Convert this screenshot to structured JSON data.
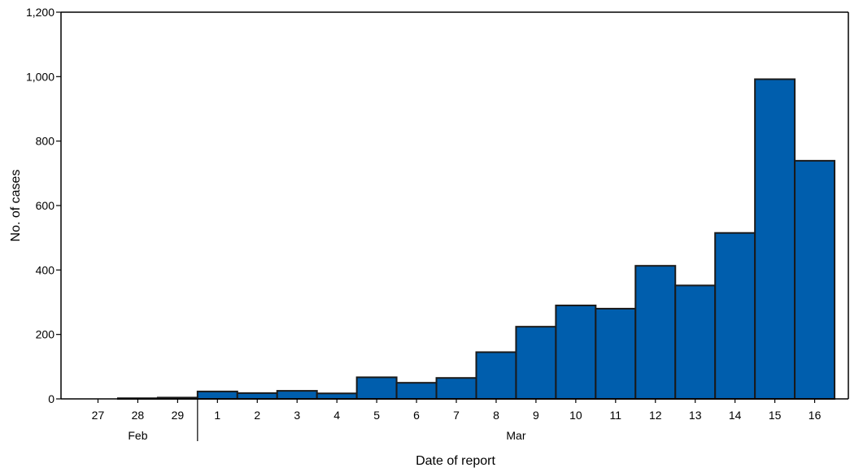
{
  "chart_data": {
    "type": "bar",
    "categories": [
      "27",
      "28",
      "29",
      "1",
      "2",
      "3",
      "4",
      "5",
      "6",
      "7",
      "8",
      "9",
      "10",
      "11",
      "12",
      "13",
      "14",
      "15",
      "16"
    ],
    "values": [
      0,
      2,
      4,
      23,
      18,
      25,
      17,
      67,
      50,
      65,
      145,
      224,
      290,
      280,
      413,
      352,
      515,
      992,
      739
    ],
    "month_groups": [
      {
        "label": "Feb",
        "start": 0,
        "end": 2
      },
      {
        "label": "Mar",
        "start": 3,
        "end": 18
      }
    ],
    "xlabel": "Date of report",
    "ylabel": "No. of cases",
    "ylim": [
      0,
      1200
    ],
    "yticks": [
      0,
      200,
      400,
      600,
      800,
      1000,
      1200
    ],
    "ytick_labels": [
      "0",
      "200",
      "400",
      "600",
      "800",
      "1,000",
      "1,200"
    ],
    "bar_color": "#005ead",
    "grid": false
  }
}
